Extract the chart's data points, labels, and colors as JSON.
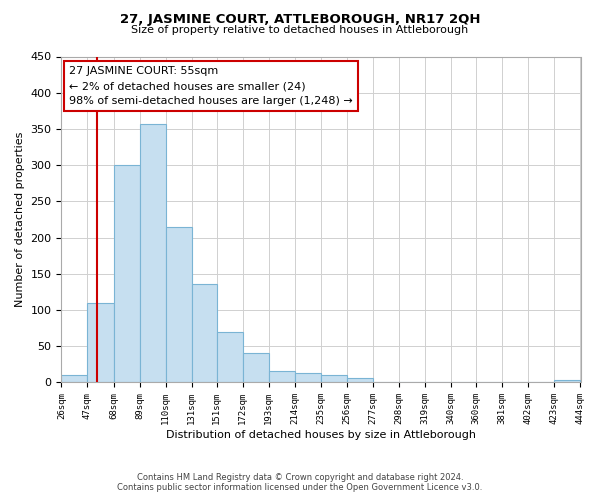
{
  "title": "27, JASMINE COURT, ATTLEBOROUGH, NR17 2QH",
  "subtitle": "Size of property relative to detached houses in Attleborough",
  "xlabel": "Distribution of detached houses by size in Attleborough",
  "ylabel": "Number of detached properties",
  "footer_line1": "Contains HM Land Registry data © Crown copyright and database right 2024.",
  "footer_line2": "Contains public sector information licensed under the Open Government Licence v3.0.",
  "bar_edges": [
    26,
    47,
    68,
    89,
    110,
    131,
    151,
    172,
    193,
    214,
    235,
    256,
    277,
    298,
    319,
    340,
    360,
    381,
    402,
    423,
    444
  ],
  "bar_heights": [
    10,
    110,
    300,
    357,
    214,
    136,
    70,
    40,
    16,
    13,
    10,
    6,
    0,
    0,
    0,
    0,
    0,
    0,
    0,
    3
  ],
  "bar_color": "#c6dff0",
  "bar_edge_color": "#7ab4d4",
  "tick_labels": [
    "26sqm",
    "47sqm",
    "68sqm",
    "89sqm",
    "110sqm",
    "131sqm",
    "151sqm",
    "172sqm",
    "193sqm",
    "214sqm",
    "235sqm",
    "256sqm",
    "277sqm",
    "298sqm",
    "319sqm",
    "340sqm",
    "360sqm",
    "381sqm",
    "402sqm",
    "423sqm",
    "444sqm"
  ],
  "ylim": [
    0,
    450
  ],
  "yticks": [
    0,
    50,
    100,
    150,
    200,
    250,
    300,
    350,
    400,
    450
  ],
  "property_line_x": 55,
  "property_line_color": "#cc0000",
  "annotation_title": "27 JASMINE COURT: 55sqm",
  "annotation_line1": "← 2% of detached houses are smaller (24)",
  "annotation_line2": "98% of semi-detached houses are larger (1,248) →",
  "annotation_box_color": "#ffffff",
  "annotation_box_edge_color": "#cc0000",
  "grid_color": "#d0d0d0",
  "background_color": "#ffffff"
}
